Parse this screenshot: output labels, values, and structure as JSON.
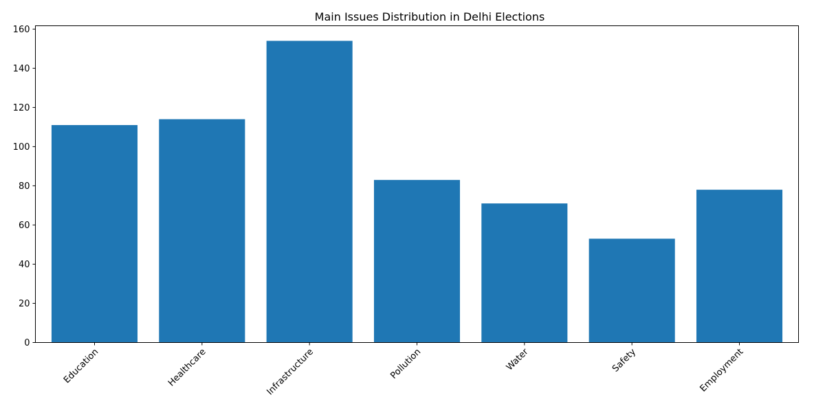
{
  "chart_data": {
    "type": "bar",
    "title": "Main Issues Distribution in Delhi Elections",
    "xlabel": "",
    "ylabel": "",
    "categories": [
      "Education",
      "Healthcare",
      "Infrastructure",
      "Pollution",
      "Water",
      "Safety",
      "Employment"
    ],
    "values": [
      111,
      114,
      154,
      83,
      71,
      53,
      78
    ],
    "ylim": [
      0,
      161.7
    ],
    "yticks": [
      "0",
      "20",
      "40",
      "60",
      "80",
      "100",
      "120",
      "140",
      "160"
    ],
    "bar_color": "#1f77b4",
    "grid": false,
    "legend": "none",
    "xtick_rotation": 45
  }
}
